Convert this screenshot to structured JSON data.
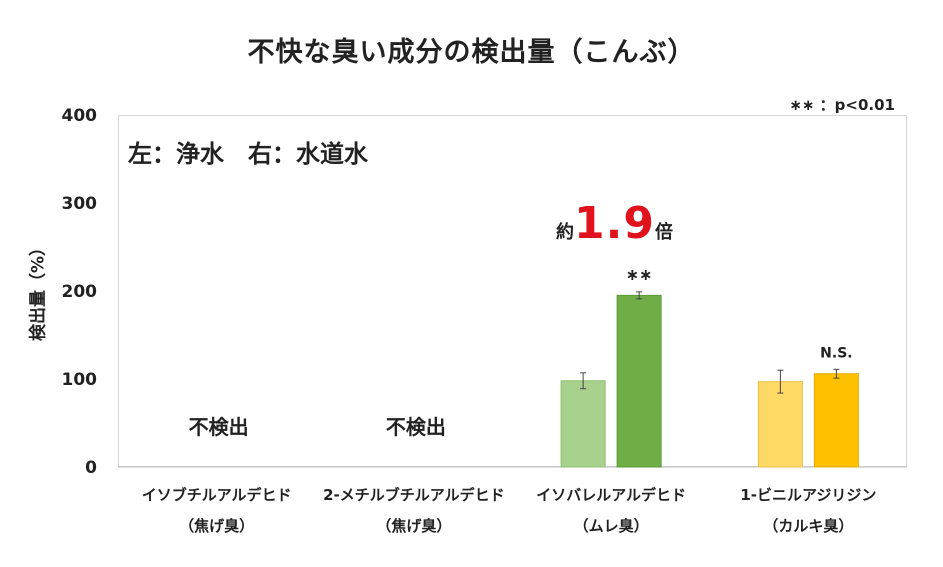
{
  "chart_data": {
    "type": "bar",
    "title": "不快な臭い成分の検出量（こんぶ）",
    "ylabel": "検出量（%）",
    "xlabel": "",
    "ylim": [
      0,
      400
    ],
    "yticks": [
      "0",
      "100",
      "200",
      "300",
      "400"
    ],
    "grid": false,
    "legend_note": "左：浄水　右：水道水",
    "significance_note": "∗∗ ：p<0.01",
    "categories": [
      {
        "name": "イソブチルアルデヒド",
        "sub": "（焦げ臭）"
      },
      {
        "name": "2-メチルブチルアルデヒド",
        "sub": "（焦げ臭）"
      },
      {
        "name": "イソバレルアルデヒド",
        "sub": "（ムレ臭）"
      },
      {
        "name": "1-ビニルアジリジン",
        "sub": "（カルキ臭）"
      }
    ],
    "series": [
      {
        "values": [
          null,
          null,
          98,
          97
        ],
        "errors": [
          null,
          null,
          9,
          13
        ]
      },
      {
        "values": [
          null,
          null,
          195,
          106
        ],
        "errors": [
          null,
          null,
          4,
          5
        ]
      }
    ],
    "colors": {
      "cat3_left": "#a9d18e",
      "cat3_right": "#70ad47",
      "cat4_left": "#ffd966",
      "cat4_right": "#ffc000",
      "cat3_left_edge": "#8fbf6f",
      "cat3_right_edge": "#5a9a38",
      "cat4_left_edge": "#e8c14a",
      "cat4_right_edge": "#e6ac00"
    },
    "not_detected_label": "不検出",
    "annotations": {
      "cat3_sig": "∗∗",
      "cat4_sig": "N.S.",
      "ratio_prefix": "約",
      "ratio_value": "1.9",
      "ratio_suffix": "倍"
    }
  }
}
